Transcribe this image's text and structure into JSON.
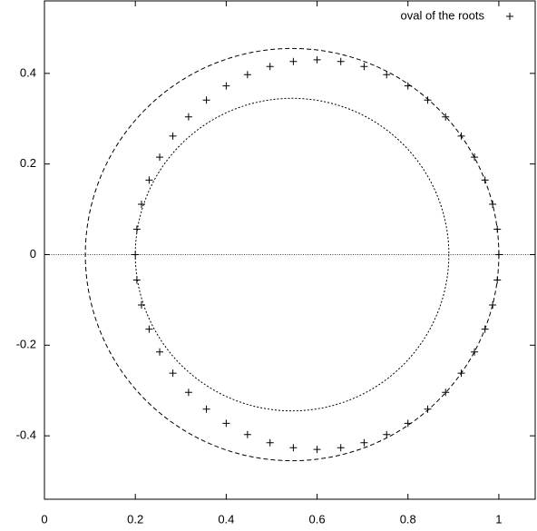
{
  "chart_data": {
    "type": "scatter",
    "series": [
      {
        "name": "oval of the roots",
        "color": "#000000",
        "marker": "+",
        "x": [
          1.0,
          0.9966,
          0.9864,
          0.9696,
          0.9464,
          0.9174,
          0.8828,
          0.8435,
          0.8,
          0.7531,
          0.7035,
          0.6522,
          0.6,
          0.5478,
          0.4965,
          0.4469,
          0.4,
          0.3565,
          0.3172,
          0.2826,
          0.2536,
          0.2304,
          0.2136,
          0.2034,
          0.2,
          0.2034,
          0.2136,
          0.2304,
          0.2536,
          0.2826,
          0.3172,
          0.3565,
          0.4,
          0.4469,
          0.4965,
          0.5478,
          0.6,
          0.6522,
          0.7035,
          0.7531,
          0.8,
          0.8435,
          0.8828,
          0.9174,
          0.9464,
          0.9696,
          0.9864,
          0.9966
        ],
        "y": [
          0,
          0.0561,
          0.1113,
          0.1646,
          0.215,
          0.2618,
          0.3041,
          0.3412,
          0.3724,
          0.3973,
          0.4153,
          0.4263,
          0.43,
          0.4263,
          0.4153,
          0.3973,
          0.3724,
          0.3412,
          0.3041,
          0.2618,
          0.215,
          0.1646,
          0.1113,
          0.0561,
          0,
          -0.0561,
          -0.1113,
          -0.1646,
          -0.215,
          -0.2618,
          -0.3041,
          -0.3412,
          -0.3724,
          -0.3973,
          -0.4153,
          -0.4263,
          -0.43,
          -0.4263,
          -0.4153,
          -0.3973,
          -0.3724,
          -0.3412,
          -0.3041,
          -0.2618,
          -0.215,
          -0.1646,
          -0.1113,
          -0.0561
        ]
      }
    ],
    "curves": [
      {
        "cx": 0.545,
        "cy": 0,
        "r": 0.455,
        "dash": "dashed"
      },
      {
        "cx": 0.545,
        "cy": 0,
        "r": 0.345,
        "dash": "dotted"
      }
    ],
    "zero_line": true,
    "xlim": [
      0,
      1.08
    ],
    "ylim": [
      -0.54,
      0.56
    ],
    "xticks": [
      0,
      0.2,
      0.4,
      0.6,
      0.8,
      1
    ],
    "yticks": [
      -0.4,
      -0.2,
      0,
      0.2,
      0.4
    ],
    "legend": "top-right"
  }
}
